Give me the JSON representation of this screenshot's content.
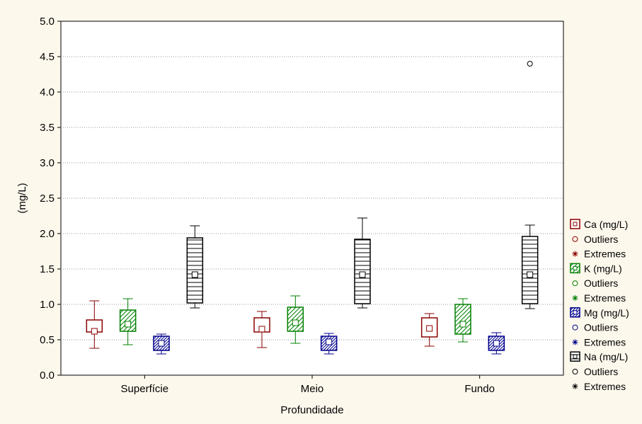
{
  "chart_data": {
    "type": "box",
    "xlabel": "Profundidade",
    "ylabel": "(mg/L)",
    "ylim": [
      0.0,
      5.0
    ],
    "yticks": [
      "0.0",
      "0.5",
      "1.0",
      "1.5",
      "2.0",
      "2.5",
      "3.0",
      "3.5",
      "4.0",
      "4.5",
      "5.0"
    ],
    "grid": "horizontal dotted",
    "legend_position": "right",
    "categories": [
      "Superfície",
      "Meio",
      "Fundo"
    ],
    "series": [
      {
        "name": "Ca (mg/L)",
        "color": "#8b0000",
        "fill": "none",
        "boxes": [
          {
            "min": 0.38,
            "q1": 0.61,
            "median": 0.62,
            "q3": 0.78,
            "max": 1.05
          },
          {
            "min": 0.39,
            "q1": 0.61,
            "median": 0.65,
            "q3": 0.81,
            "max": 0.9
          },
          {
            "min": 0.41,
            "q1": 0.54,
            "median": 0.66,
            "q3": 0.81,
            "max": 0.87
          }
        ]
      },
      {
        "name": "K (mg/L)",
        "color": "#008000",
        "fill": "diagonal",
        "boxes": [
          {
            "min": 0.43,
            "q1": 0.62,
            "median": 0.72,
            "q3": 0.92,
            "max": 1.08
          },
          {
            "min": 0.45,
            "q1": 0.62,
            "median": 0.74,
            "q3": 0.96,
            "max": 1.12
          },
          {
            "min": 0.47,
            "q1": 0.58,
            "median": 0.72,
            "q3": 1.0,
            "max": 1.08
          }
        ]
      },
      {
        "name": "Mg (mg/L)",
        "color": "#00008b",
        "fill": "diagonal-dense",
        "boxes": [
          {
            "min": 0.3,
            "q1": 0.35,
            "median": 0.45,
            "q3": 0.55,
            "max": 0.58
          },
          {
            "min": 0.3,
            "q1": 0.35,
            "median": 0.47,
            "q3": 0.55,
            "max": 0.59
          },
          {
            "min": 0.3,
            "q1": 0.35,
            "median": 0.45,
            "q3": 0.55,
            "max": 0.6
          }
        ]
      },
      {
        "name": "Na (mg/L)",
        "color": "#000000",
        "fill": "horizontal",
        "boxes": [
          {
            "min": 0.95,
            "q1": 1.02,
            "median": 1.42,
            "q3": 1.94,
            "max": 2.11
          },
          {
            "min": 0.95,
            "q1": 1.01,
            "median": 1.42,
            "q3": 1.92,
            "max": 2.22
          },
          {
            "min": 0.94,
            "q1": 1.01,
            "median": 1.42,
            "q3": 1.96,
            "max": 2.12
          }
        ]
      }
    ],
    "outliers": [
      {
        "series": "Na (mg/L)",
        "category": "Fundo",
        "value": 4.4
      }
    ],
    "legend": [
      {
        "label": "Ca (mg/L)",
        "symbol": "box",
        "color": "#8b0000",
        "fill": "none"
      },
      {
        "label": "Outliers",
        "symbol": "circle",
        "color": "#8b0000"
      },
      {
        "label": "Extremes",
        "symbol": "star",
        "color": "#8b0000"
      },
      {
        "label": "K (mg/L)",
        "symbol": "box",
        "color": "#008000",
        "fill": "diagonal"
      },
      {
        "label": "Outliers",
        "symbol": "circle",
        "color": "#008000"
      },
      {
        "label": "Extremes",
        "symbol": "star",
        "color": "#008000"
      },
      {
        "label": "Mg (mg/L)",
        "symbol": "box",
        "color": "#00008b",
        "fill": "diagonal-dense"
      },
      {
        "label": "Outliers",
        "symbol": "circle",
        "color": "#00008b"
      },
      {
        "label": "Extremes",
        "symbol": "star",
        "color": "#00008b"
      },
      {
        "label": "Na (mg/L)",
        "symbol": "box",
        "color": "#000000",
        "fill": "horizontal"
      },
      {
        "label": "Outliers",
        "symbol": "circle",
        "color": "#000000"
      },
      {
        "label": "Extremes",
        "symbol": "star",
        "color": "#000000"
      }
    ]
  }
}
